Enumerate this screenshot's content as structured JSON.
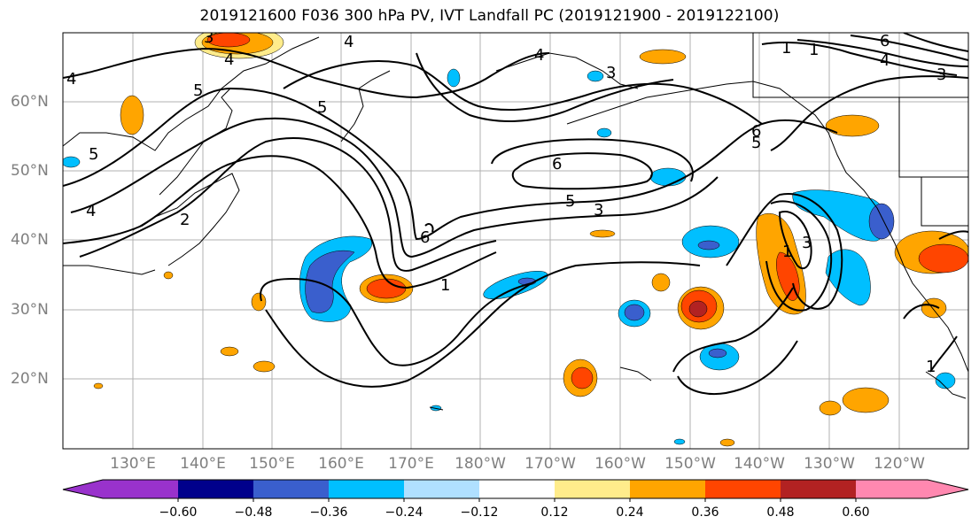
{
  "title": "2019121600 F036 300 hPa PV, IVT Landfall PC (2019121900 - 2019122100)",
  "lon_labels": [
    "130°E",
    "140°E",
    "150°E",
    "160°E",
    "170°E",
    "180°W",
    "170°W",
    "160°W",
    "150°W",
    "140°W",
    "130°W",
    "120°W"
  ],
  "lat_labels": [
    "60°N",
    "50°N",
    "40°N",
    "30°N",
    "20°N"
  ],
  "colorbar": {
    "ticks": [
      "−0.60",
      "−0.48",
      "−0.36",
      "−0.24",
      "−0.12",
      "0.12",
      "0.24",
      "0.36",
      "0.48",
      "0.60"
    ],
    "colors": [
      "#9932cc",
      "#00008b",
      "#3a5fcd",
      "#00bfff",
      "#b0e0ff",
      "#ffffff",
      "#ffec8b",
      "#ffa500",
      "#ff4500",
      "#b22222",
      "#ff88b0"
    ]
  },
  "contour_labels": [
    "4",
    "5",
    "5",
    "4",
    "2",
    "4",
    "5",
    "6",
    "5",
    "3",
    "6",
    "1",
    "1",
    "6",
    "5",
    "4",
    "3",
    "3",
    "4",
    "3",
    "6",
    "1",
    "1",
    "1",
    "3",
    "4"
  ]
}
